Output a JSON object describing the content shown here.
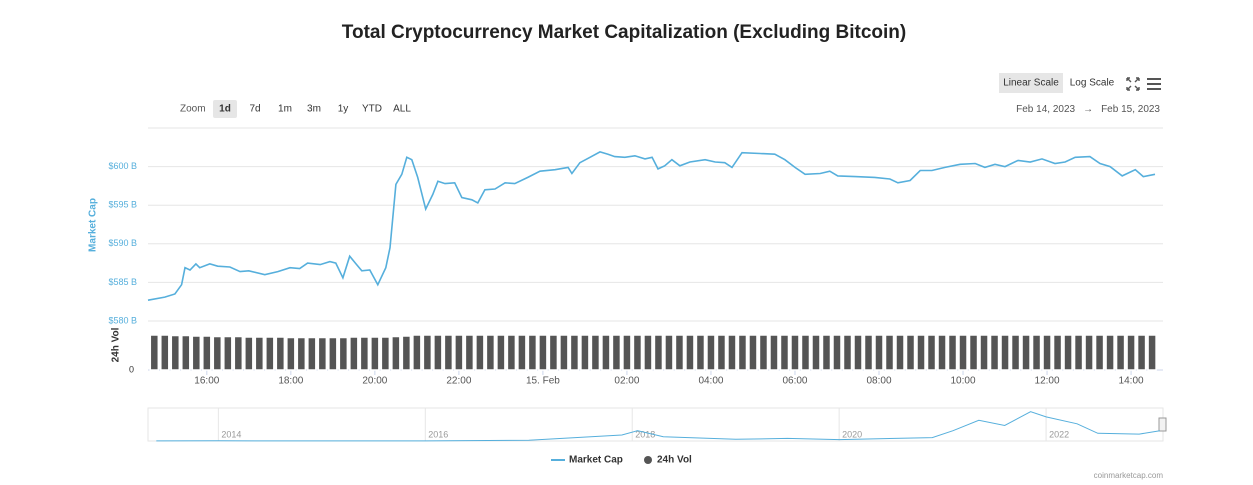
{
  "chart_data": {
    "type": "line",
    "title": "Total Cryptocurrency Market Capitalization (Excluding Bitcoin)",
    "y_label": "Market Cap",
    "y2_label": "24h Vol",
    "xlim": [
      14.6,
      38.76
    ],
    "xticks": [
      {
        "value": 16,
        "label": "16:00"
      },
      {
        "value": 18,
        "label": "18:00"
      },
      {
        "value": 20,
        "label": "20:00"
      },
      {
        "value": 22,
        "label": "22:00"
      },
      {
        "value": 24,
        "label": "15. Feb"
      },
      {
        "value": 26,
        "label": "02:00"
      },
      {
        "value": 28,
        "label": "04:00"
      },
      {
        "value": 30,
        "label": "06:00"
      },
      {
        "value": 32,
        "label": "08:00"
      },
      {
        "value": 34,
        "label": "10:00"
      },
      {
        "value": 36,
        "label": "12:00"
      },
      {
        "value": 38,
        "label": "14:00"
      }
    ],
    "ylim": [
      580,
      605
    ],
    "yticks": [
      {
        "value": 580,
        "label": "$580 B"
      },
      {
        "value": 585,
        "label": "$585 B"
      },
      {
        "value": 590,
        "label": "$590 B"
      },
      {
        "value": 595,
        "label": "$595 B"
      },
      {
        "value": 600,
        "label": "$600 B"
      }
    ],
    "y2lim": [
      0,
      40
    ],
    "y2ticks": [
      0
    ],
    "grid": true,
    "series": [
      {
        "name": "Market Cap",
        "color": "#56afdc",
        "x": [
          14.6,
          15.0,
          15.24,
          15.4,
          15.48,
          15.6,
          15.74,
          15.83,
          16.07,
          16.26,
          16.55,
          16.79,
          17.0,
          17.38,
          17.69,
          17.98,
          18.21,
          18.4,
          18.7,
          18.93,
          19.07,
          19.24,
          19.4,
          19.55,
          19.69,
          19.88,
          20.07,
          20.26,
          20.36,
          20.5,
          20.64,
          20.76,
          20.88,
          21.02,
          21.21,
          21.38,
          21.5,
          21.67,
          21.9,
          22.07,
          22.31,
          22.45,
          22.62,
          22.86,
          23.1,
          23.33,
          23.64,
          23.93,
          24.29,
          24.6,
          24.69,
          24.88,
          25.12,
          25.36,
          25.55,
          25.71,
          25.95,
          26.19,
          26.43,
          26.6,
          26.74,
          26.9,
          27.07,
          27.26,
          27.5,
          27.86,
          28.1,
          28.33,
          28.5,
          28.74,
          29.17,
          29.52,
          29.76,
          30.0,
          30.24,
          30.6,
          30.83,
          31.02,
          31.43,
          31.9,
          32.26,
          32.45,
          32.74,
          32.98,
          33.26,
          33.57,
          33.93,
          34.29,
          34.52,
          34.76,
          35.0,
          35.31,
          35.6,
          35.88,
          36.19,
          36.43,
          36.67,
          37.02,
          37.26,
          37.5,
          37.79,
          38.1,
          38.29,
          38.57
        ],
        "values": [
          582.7,
          583.1,
          583.5,
          584.7,
          586.9,
          586.6,
          587.4,
          586.9,
          587.4,
          587.1,
          587.0,
          586.4,
          586.5,
          586.0,
          586.4,
          586.9,
          586.8,
          587.5,
          587.3,
          587.7,
          587.5,
          585.6,
          588.4,
          587.4,
          586.5,
          586.6,
          584.7,
          586.9,
          589.5,
          597.7,
          599.0,
          601.2,
          600.9,
          598.6,
          594.5,
          596.4,
          598.1,
          597.8,
          597.9,
          596.0,
          595.7,
          595.3,
          597.0,
          597.1,
          597.9,
          597.8,
          598.6,
          599.4,
          599.6,
          599.9,
          599.1,
          600.5,
          601.2,
          601.9,
          601.6,
          601.3,
          601.2,
          601.4,
          601.0,
          601.2,
          599.7,
          600.1,
          600.9,
          600.1,
          600.6,
          600.9,
          600.6,
          600.5,
          599.9,
          601.8,
          601.7,
          601.6,
          600.9,
          599.9,
          599.0,
          599.1,
          599.4,
          598.8,
          598.7,
          598.6,
          598.4,
          597.9,
          598.2,
          599.5,
          599.5,
          599.9,
          600.3,
          600.4,
          599.9,
          600.3,
          600.0,
          600.8,
          600.6,
          601.0,
          600.4,
          600.6,
          601.2,
          601.3,
          600.4,
          600.0,
          598.8,
          599.6,
          598.7,
          599.0
        ]
      },
      {
        "name": "24h Vol",
        "color": "#555555",
        "axis": "y2",
        "x": [
          14.75,
          15,
          15.25,
          15.5,
          15.75,
          16,
          16.25,
          16.5,
          16.75,
          17,
          17.25,
          17.5,
          17.75,
          18,
          18.25,
          18.5,
          18.75,
          19,
          19.25,
          19.5,
          19.75,
          20,
          20.25,
          20.5,
          20.75,
          21,
          21.25,
          21.5,
          21.75,
          22,
          22.25,
          22.5,
          22.75,
          23,
          23.25,
          23.5,
          23.75,
          24,
          24.25,
          24.5,
          24.75,
          25,
          25.25,
          25.5,
          25.75,
          26,
          26.25,
          26.5,
          26.75,
          27,
          27.25,
          27.5,
          27.75,
          28,
          28.25,
          28.5,
          28.75,
          29,
          29.25,
          29.5,
          29.75,
          30,
          30.25,
          30.5,
          30.75,
          31,
          31.25,
          31.5,
          31.75,
          32,
          32.25,
          32.5,
          32.75,
          33,
          33.25,
          33.5,
          33.75,
          34,
          34.25,
          34.5,
          34.75,
          35,
          35.25,
          35.5,
          35.75,
          36,
          36.25,
          36.5,
          36.75,
          37,
          37.25,
          37.5,
          37.75,
          38,
          38.25,
          38.5
        ],
        "values": [
          35,
          35,
          34.5,
          34.5,
          34,
          34,
          33.5,
          33.5,
          33.5,
          33,
          33,
          33,
          33,
          32.5,
          32.5,
          32.5,
          32.5,
          32.5,
          32.5,
          33,
          33,
          33,
          33,
          33.5,
          34,
          35,
          35,
          35,
          35,
          35,
          35,
          35,
          35,
          35,
          35,
          35,
          35,
          35,
          35,
          35,
          35,
          35,
          35,
          35,
          35,
          35,
          35,
          35,
          35,
          35,
          35,
          35,
          35,
          35,
          35,
          35,
          35,
          35,
          35,
          35,
          35,
          35,
          35,
          35,
          35,
          35,
          35,
          35,
          35,
          35,
          35,
          35,
          35,
          35,
          35,
          35,
          35,
          35,
          35,
          35,
          35,
          35,
          35,
          35,
          35,
          35,
          35,
          35,
          35,
          35,
          35,
          35,
          35,
          35,
          35,
          35
        ]
      }
    ],
    "navigator": {
      "type": "line",
      "xlim": [
        2013.32,
        2023.13
      ],
      "ylim": [
        0,
        1800
      ],
      "xticks": [
        2014,
        2016,
        2018,
        2020,
        2022
      ],
      "x": [
        2013.4,
        2014,
        2015,
        2016,
        2017,
        2017.9,
        2018.05,
        2018.3,
        2019,
        2019.5,
        2020,
        2020.9,
        2021.1,
        2021.35,
        2021.6,
        2021.85,
        2022.0,
        2022.3,
        2022.5,
        2022.9,
        2023.1
      ],
      "values": [
        5,
        10,
        5,
        8,
        40,
        350,
        600,
        250,
        100,
        150,
        80,
        200,
        600,
        1200,
        900,
        1700,
        1400,
        1000,
        450,
        400,
        600
      ]
    }
  },
  "controls": {
    "zoom_label": "Zoom",
    "zoom_options": [
      "1d",
      "7d",
      "1m",
      "3m",
      "1y",
      "YTD",
      "ALL"
    ],
    "zoom_active": 0,
    "scale_options": [
      "Linear Scale",
      "Log Scale"
    ],
    "scale_active": 0,
    "date_range": {
      "from": "Feb 14, 2023",
      "separator": "→",
      "to": "Feb 15, 2023"
    }
  },
  "credit": "coinmarketcap.com"
}
